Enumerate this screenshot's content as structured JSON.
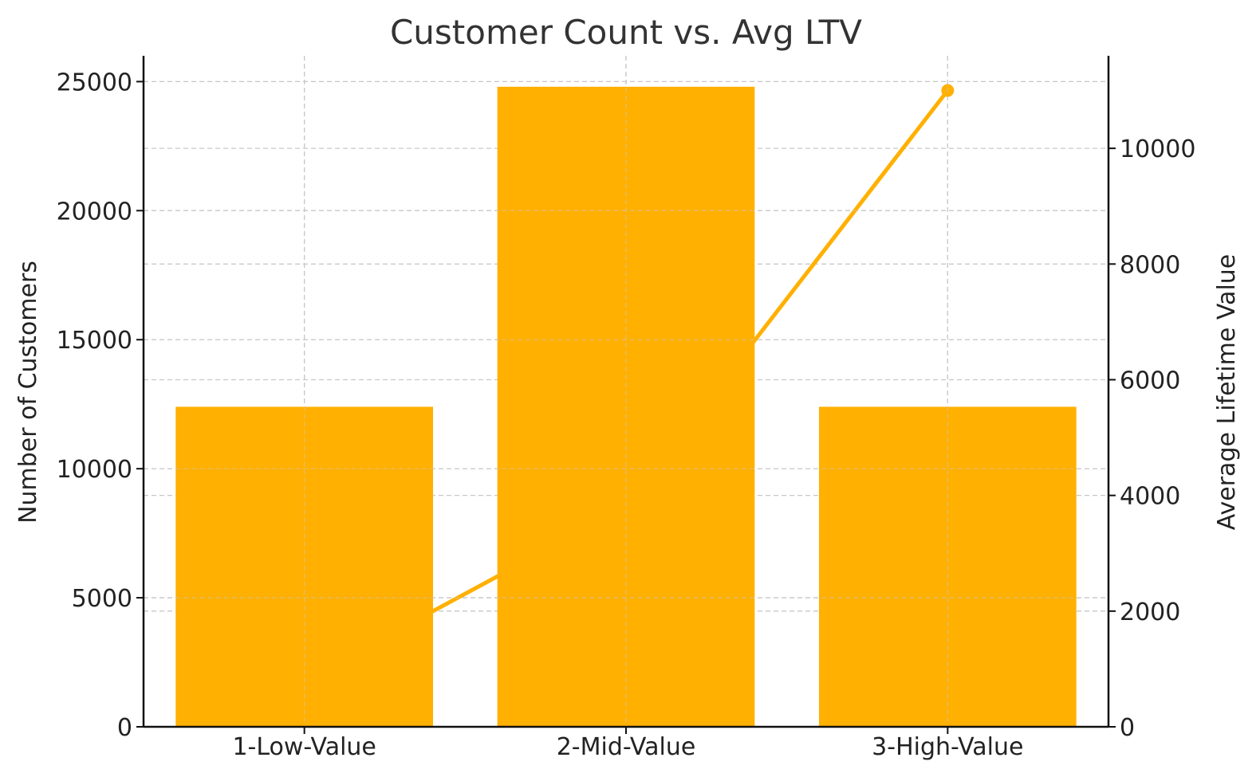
{
  "chart_data": {
    "type": "bar",
    "title": "Customer Count vs. Avg LTV",
    "categories": [
      "1-Low-Value",
      "2-Mid-Value",
      "3-High-Value"
    ],
    "series": [
      {
        "kind": "bar",
        "axis": "left",
        "color": "#FFB000",
        "values": [
          12400,
          24800,
          12400
        ]
      },
      {
        "kind": "line",
        "axis": "right",
        "color": "#FFB000",
        "marker": "circle",
        "values": [
          800,
          3800,
          11000
        ]
      }
    ],
    "ylabel": "Number of Customers",
    "ylabel_right": "Average Lifetime Value",
    "ylim": [
      0,
      26000
    ],
    "ylim_right": [
      0,
      11600
    ],
    "yticks": [
      0,
      5000,
      10000,
      15000,
      20000,
      25000
    ],
    "yticks_right": [
      0,
      2000,
      4000,
      6000,
      8000,
      10000
    ],
    "grid": true,
    "bar_color": "#FFB000",
    "line_color": "#FFB000"
  }
}
